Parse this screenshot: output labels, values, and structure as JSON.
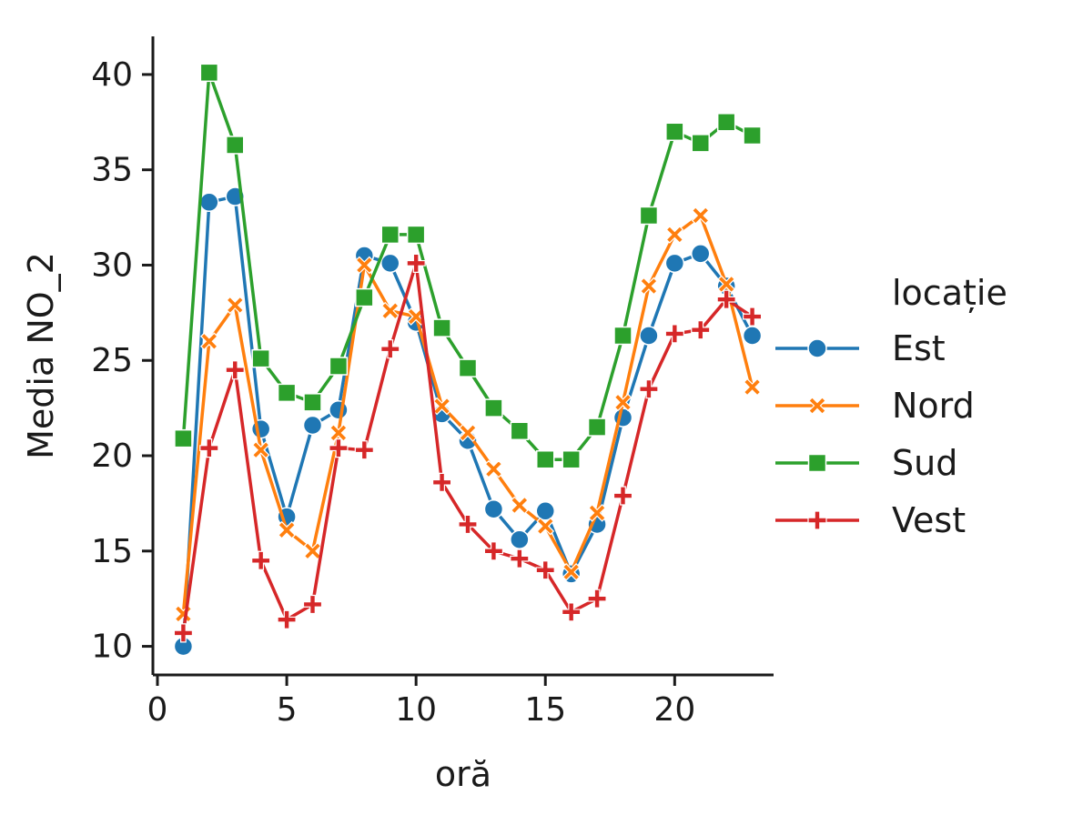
{
  "chart_data": {
    "type": "line",
    "xlabel": "oră",
    "ylabel": "Media NO_2",
    "xlim": [
      0,
      24
    ],
    "ylim": [
      8.5,
      42
    ],
    "xticks": [
      0,
      5,
      10,
      15,
      20
    ],
    "yticks": [
      10,
      15,
      20,
      25,
      30,
      35,
      40
    ],
    "grid": false,
    "legend": {
      "title": "locație",
      "position": "right"
    },
    "x": [
      1,
      2,
      3,
      4,
      5,
      6,
      7,
      8,
      9,
      10,
      11,
      12,
      13,
      14,
      15,
      16,
      17,
      18,
      19,
      20,
      21,
      22,
      23
    ],
    "series": [
      {
        "name": "Est",
        "color": "#1f77b4",
        "marker": "circle",
        "values": [
          10.0,
          33.3,
          33.6,
          21.4,
          16.8,
          21.6,
          22.4,
          30.5,
          30.1,
          27.0,
          22.2,
          20.8,
          17.2,
          15.6,
          17.1,
          13.8,
          16.4,
          22.0,
          26.3,
          30.1,
          30.6,
          28.9,
          26.3
        ]
      },
      {
        "name": "Nord",
        "color": "#ff7f0e",
        "marker": "x",
        "values": [
          11.7,
          26.0,
          27.9,
          20.3,
          16.1,
          15.0,
          21.2,
          30.0,
          27.6,
          27.3,
          22.6,
          21.2,
          19.3,
          17.4,
          16.3,
          13.9,
          17.0,
          22.8,
          28.9,
          31.6,
          32.6,
          29.0,
          23.6
        ]
      },
      {
        "name": "Sud",
        "color": "#2ca02c",
        "marker": "square",
        "values": [
          20.9,
          40.1,
          36.3,
          25.1,
          23.3,
          22.8,
          24.7,
          28.3,
          31.6,
          31.6,
          26.7,
          24.6,
          22.5,
          21.3,
          19.8,
          19.8,
          21.5,
          26.3,
          32.6,
          37.0,
          36.4,
          37.5,
          36.8
        ]
      },
      {
        "name": "Vest",
        "color": "#d62728",
        "marker": "plus",
        "values": [
          10.7,
          20.4,
          24.5,
          14.5,
          11.4,
          12.2,
          20.4,
          20.3,
          25.6,
          30.1,
          18.6,
          16.4,
          15.0,
          14.6,
          14.0,
          11.8,
          12.5,
          17.9,
          23.5,
          26.4,
          26.6,
          28.2,
          27.3
        ]
      }
    ]
  }
}
